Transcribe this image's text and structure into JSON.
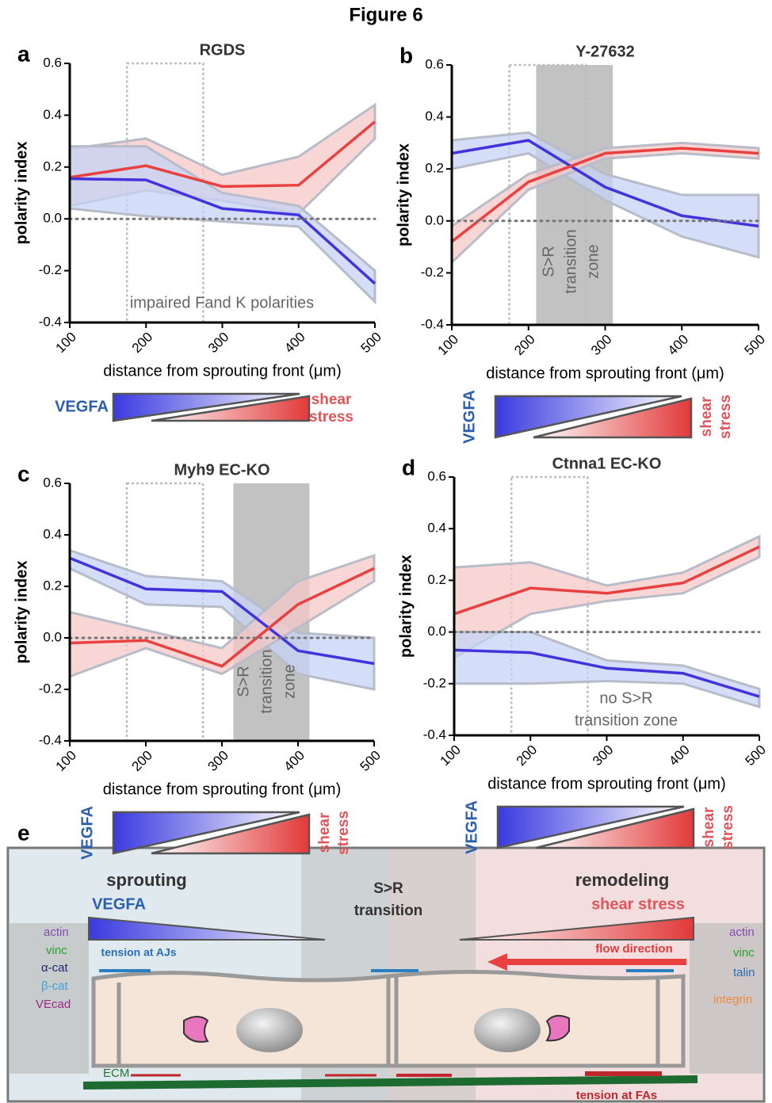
{
  "title": "Figure 6",
  "chart_data": [
    {
      "type": "line",
      "panel": "a",
      "title": "RGDS",
      "x": [
        100,
        200,
        300,
        400,
        500
      ],
      "xlim": [
        100,
        500
      ],
      "xticks": [
        100,
        200,
        300,
        400,
        500
      ],
      "ylim": [
        -0.4,
        0.6
      ],
      "yticks": [
        0.6,
        0.4,
        0.2,
        {
          "value": 0,
          "label": "0.0"
        },
        -0.2,
        -0.4
      ],
      "xlabel": "distance from sprouting front (μm)",
      "ylabel": "polarity index",
      "reference_line": 0,
      "highlight_box": [
        175,
        275
      ],
      "series": [
        {
          "color": "#e8413f",
          "values": [
            0.16,
            0.205,
            0.125,
            0.13,
            0.375
          ],
          "lower": [
            0.05,
            0.11,
            0.07,
            0.02,
            0.31
          ],
          "upper": [
            0.27,
            0.31,
            0.17,
            0.24,
            0.44
          ]
        },
        {
          "color": "#4433dd",
          "values": [
            0.155,
            0.15,
            0.04,
            0.015,
            -0.25
          ],
          "lower": [
            0.04,
            0.01,
            -0.01,
            -0.03,
            -0.32
          ],
          "upper": [
            0.28,
            0.28,
            0.1,
            0.05,
            -0.2
          ]
        }
      ],
      "annotation": [
        "impaired Fand K polarities"
      ],
      "gradient_left": "VEGFA",
      "gradient_right": [
        "shear",
        "stress"
      ]
    },
    {
      "type": "line",
      "panel": "b",
      "title": "Y-27632",
      "x": [
        100,
        200,
        300,
        400,
        500
      ],
      "xlim": [
        100,
        500
      ],
      "xticks": [
        100,
        200,
        300,
        400,
        500
      ],
      "ylim": [
        -0.4,
        0.6
      ],
      "yticks": [
        0.6,
        0.4,
        0.2,
        {
          "value": 0,
          "label": "0.0"
        },
        -0.2,
        -0.4
      ],
      "xlabel": "distance from sprouting front (μm)",
      "ylabel": "polarity index",
      "reference_line": 0,
      "highlight_box": [
        175,
        275
      ],
      "transition_zone": [
        210,
        310
      ],
      "series": [
        {
          "color": "#4433dd",
          "values": [
            0.26,
            0.31,
            0.13,
            0.02,
            -0.02
          ],
          "lower": [
            0.2,
            0.26,
            0.08,
            -0.06,
            -0.14
          ],
          "upper": [
            0.31,
            0.34,
            0.18,
            0.1,
            0.1
          ]
        },
        {
          "color": "#e8413f",
          "values": [
            -0.08,
            0.15,
            0.26,
            0.28,
            0.26
          ],
          "lower": [
            -0.16,
            0.12,
            0.24,
            0.26,
            0.24
          ],
          "upper": [
            -0.02,
            0.18,
            0.28,
            0.3,
            0.28
          ]
        }
      ],
      "annotation": [
        "S>R",
        "transition",
        "zone"
      ],
      "gradient_left": "VEGFA",
      "gradient_right": [
        "shear",
        "stress"
      ]
    },
    {
      "type": "line",
      "panel": "c",
      "title": "Myh9 EC-KO",
      "x": [
        100,
        200,
        300,
        400,
        500
      ],
      "xlim": [
        100,
        500
      ],
      "xticks": [
        100,
        200,
        300,
        400,
        500
      ],
      "ylim": [
        -0.4,
        0.6
      ],
      "yticks": [
        0.6,
        0.4,
        0.2,
        {
          "value": 0,
          "label": "0.0"
        },
        -0.2,
        -0.4
      ],
      "xlabel": "distance from sprouting front (μm)",
      "ylabel": "polarity index",
      "reference_line": 0,
      "highlight_box": [
        175,
        275
      ],
      "transition_zone": [
        315,
        415
      ],
      "series": [
        {
          "color": "#4433dd",
          "values": [
            0.31,
            0.19,
            0.18,
            -0.05,
            -0.1
          ],
          "lower": [
            0.27,
            0.13,
            0.12,
            -0.14,
            -0.2
          ],
          "upper": [
            0.34,
            0.24,
            0.22,
            0.02,
            0
          ]
        },
        {
          "color": "#e8413f",
          "values": [
            -0.02,
            -0.01,
            -0.11,
            0.13,
            0.27
          ],
          "lower": [
            -0.15,
            -0.04,
            -0.14,
            0.04,
            0.22
          ],
          "upper": [
            0.1,
            0.03,
            -0.04,
            0.22,
            0.32
          ]
        }
      ],
      "annotation": [
        "S>R",
        "transition",
        "zone"
      ],
      "gradient_left": "VEGFA",
      "gradient_right": [
        "shear",
        "stress"
      ]
    },
    {
      "type": "line",
      "panel": "d",
      "title": "Ctnna1 EC-KO",
      "x": [
        100,
        200,
        300,
        400,
        500
      ],
      "xlim": [
        100,
        500
      ],
      "xticks": [
        100,
        200,
        300,
        400,
        500
      ],
      "ylim": [
        -0.4,
        0.6
      ],
      "yticks": [
        0.6,
        0.4,
        0.2,
        {
          "value": 0,
          "label": "0.0"
        },
        -0.2,
        -0.4
      ],
      "xlabel": "distance from sprouting front (μm)",
      "ylabel": "polarity index",
      "reference_line": 0,
      "highlight_box": [
        175,
        275
      ],
      "series": [
        {
          "color": "#e8413f",
          "values": [
            0.07,
            0.17,
            0.15,
            0.19,
            0.33
          ],
          "lower": [
            -0.1,
            0.07,
            0.12,
            0.15,
            0.29
          ],
          "upper": [
            0.25,
            0.27,
            0.18,
            0.23,
            0.37
          ]
        },
        {
          "color": "#4433dd",
          "values": [
            -0.07,
            -0.08,
            -0.14,
            -0.16,
            -0.25
          ],
          "lower": [
            -0.2,
            -0.2,
            -0.19,
            -0.2,
            -0.29
          ],
          "upper": [
            0,
            0,
            -0.11,
            -0.13,
            -0.22
          ]
        }
      ],
      "annotation": [
        "no S>R",
        "transition zone"
      ],
      "gradient_left": "VEGFA",
      "gradient_right": [
        "shear",
        "stress"
      ]
    }
  ],
  "panel_e": {
    "label": "e",
    "sprouting": "sprouting",
    "transition": [
      "S>R",
      "transition"
    ],
    "remodeling": "remodeling",
    "gradient_left": "VEGFA",
    "gradient_right": "shear stress",
    "tension_aj": "tension at AJs",
    "flow": "flow direction",
    "tension_fa": "tension at FAs",
    "ecm": "ECM",
    "left_key": [
      "actin",
      "vinc",
      "α-cat",
      "β-cat",
      "VEcad"
    ],
    "right_key": [
      "actin",
      "vinc",
      "talin",
      "integrin"
    ]
  }
}
